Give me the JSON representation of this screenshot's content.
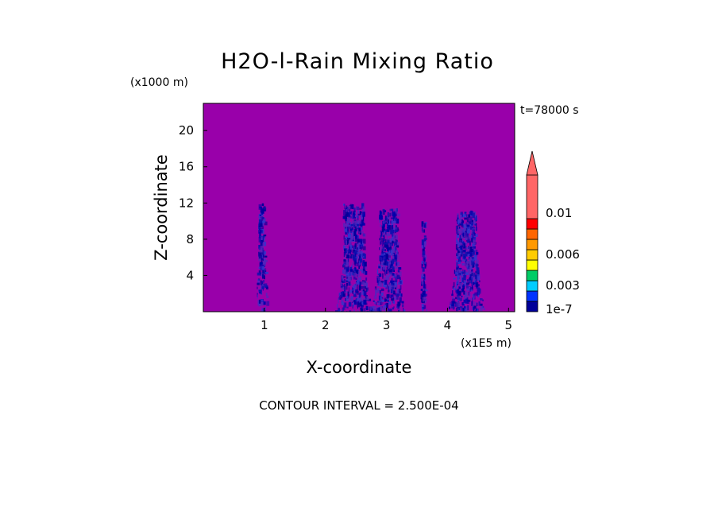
{
  "chart_data": {
    "type": "heatmap",
    "title": "H2O-l-Rain Mixing Ratio",
    "xlabel": "X-coordinate",
    "ylabel": "Z-coordinate",
    "x_units": "(x1E5 m)",
    "y_units": "(x1000 m)",
    "time_label": "t=78000 s",
    "footer": "CONTOUR INTERVAL = 2.500E-04",
    "xlim": [
      0,
      5.1
    ],
    "ylim": [
      0,
      23
    ],
    "xticks": [
      "1",
      "2",
      "3",
      "4",
      "5"
    ],
    "yticks": [
      "4",
      "8",
      "12",
      "16",
      "20"
    ],
    "background_color": "#9900aa",
    "rain_columns": [
      {
        "x_start": 0.85,
        "x_end": 1.05,
        "top": 12.0
      },
      {
        "x_start": 2.15,
        "x_end": 2.75,
        "top": 12.0
      },
      {
        "x_start": 2.75,
        "x_end": 3.3,
        "top": 11.5
      },
      {
        "x_start": 3.55,
        "x_end": 3.65,
        "top": 10.5
      },
      {
        "x_start": 4.0,
        "x_end": 4.6,
        "top": 11.2
      }
    ],
    "colorbar": {
      "labels": [
        "1e-7",
        "0.003",
        "0.006",
        "0.01"
      ],
      "colors": [
        "#000099",
        "#0033ff",
        "#00ccff",
        "#00cc66",
        "#ffff00",
        "#ffcc00",
        "#ff9900",
        "#ff6600",
        "#ff0000",
        "#ff6666"
      ],
      "extend": "max"
    }
  }
}
